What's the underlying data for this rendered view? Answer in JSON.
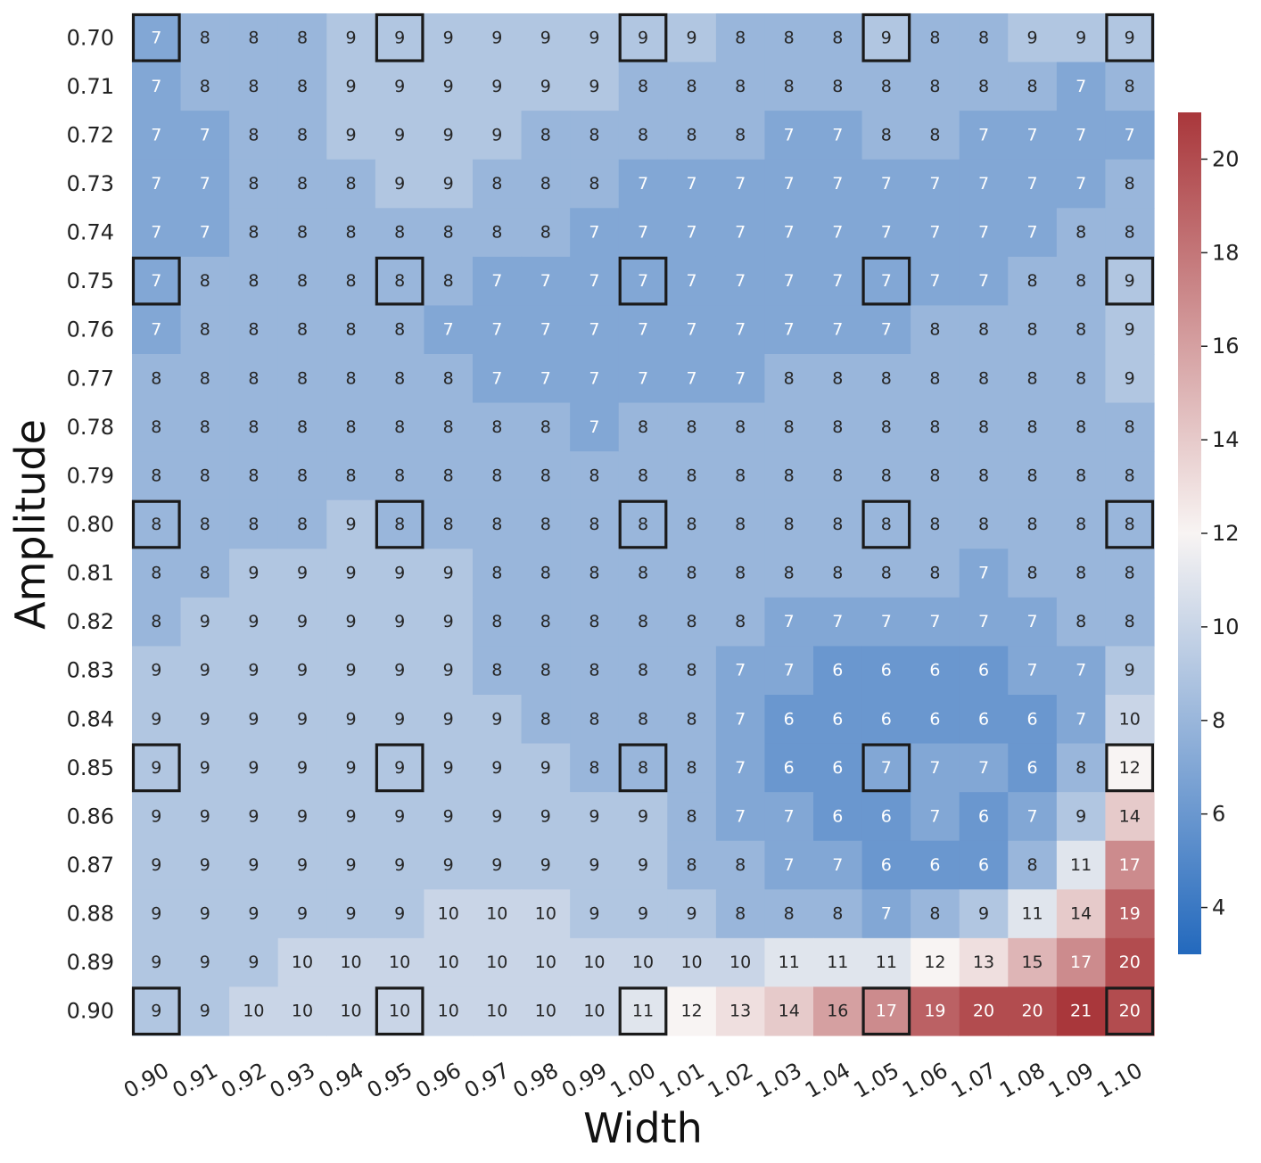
{
  "chart_data": {
    "type": "heatmap",
    "xlabel": "Width",
    "ylabel": "Amplitude",
    "x_categories": [
      "0.90",
      "0.91",
      "0.92",
      "0.93",
      "0.94",
      "0.95",
      "0.96",
      "0.97",
      "0.98",
      "0.99",
      "1.00",
      "1.01",
      "1.02",
      "1.03",
      "1.04",
      "1.05",
      "1.06",
      "1.07",
      "1.08",
      "1.09",
      "1.10"
    ],
    "y_categories": [
      "0.70",
      "0.71",
      "0.72",
      "0.73",
      "0.74",
      "0.75",
      "0.76",
      "0.77",
      "0.78",
      "0.79",
      "0.80",
      "0.81",
      "0.82",
      "0.83",
      "0.84",
      "0.85",
      "0.86",
      "0.87",
      "0.88",
      "0.89",
      "0.90"
    ],
    "values": [
      [
        7,
        8,
        8,
        8,
        9,
        9,
        9,
        9,
        9,
        9,
        9,
        9,
        8,
        8,
        8,
        9,
        8,
        8,
        9,
        9,
        9
      ],
      [
        7,
        8,
        8,
        8,
        9,
        9,
        9,
        9,
        9,
        9,
        8,
        8,
        8,
        8,
        8,
        8,
        8,
        8,
        8,
        7,
        8
      ],
      [
        7,
        7,
        8,
        8,
        9,
        9,
        9,
        9,
        8,
        8,
        8,
        8,
        8,
        7,
        7,
        8,
        8,
        7,
        7,
        7,
        7
      ],
      [
        7,
        7,
        8,
        8,
        8,
        9,
        9,
        8,
        8,
        8,
        7,
        7,
        7,
        7,
        7,
        7,
        7,
        7,
        7,
        7,
        8
      ],
      [
        7,
        7,
        8,
        8,
        8,
        8,
        8,
        8,
        8,
        7,
        7,
        7,
        7,
        7,
        7,
        7,
        7,
        7,
        7,
        8,
        8
      ],
      [
        7,
        8,
        8,
        8,
        8,
        8,
        8,
        7,
        7,
        7,
        7,
        7,
        7,
        7,
        7,
        7,
        7,
        7,
        8,
        8,
        9
      ],
      [
        7,
        8,
        8,
        8,
        8,
        8,
        7,
        7,
        7,
        7,
        7,
        7,
        7,
        7,
        7,
        7,
        8,
        8,
        8,
        8,
        9
      ],
      [
        8,
        8,
        8,
        8,
        8,
        8,
        8,
        7,
        7,
        7,
        7,
        7,
        7,
        8,
        8,
        8,
        8,
        8,
        8,
        8,
        9
      ],
      [
        8,
        8,
        8,
        8,
        8,
        8,
        8,
        8,
        8,
        7,
        8,
        8,
        8,
        8,
        8,
        8,
        8,
        8,
        8,
        8,
        8
      ],
      [
        8,
        8,
        8,
        8,
        8,
        8,
        8,
        8,
        8,
        8,
        8,
        8,
        8,
        8,
        8,
        8,
        8,
        8,
        8,
        8,
        8
      ],
      [
        8,
        8,
        8,
        8,
        9,
        8,
        8,
        8,
        8,
        8,
        8,
        8,
        8,
        8,
        8,
        8,
        8,
        8,
        8,
        8,
        8
      ],
      [
        8,
        8,
        9,
        9,
        9,
        9,
        9,
        8,
        8,
        8,
        8,
        8,
        8,
        8,
        8,
        8,
        8,
        7,
        8,
        8,
        8
      ],
      [
        8,
        9,
        9,
        9,
        9,
        9,
        9,
        8,
        8,
        8,
        8,
        8,
        8,
        7,
        7,
        7,
        7,
        7,
        7,
        8,
        8
      ],
      [
        9,
        9,
        9,
        9,
        9,
        9,
        9,
        8,
        8,
        8,
        8,
        8,
        7,
        7,
        6,
        6,
        6,
        6,
        7,
        7,
        9
      ],
      [
        9,
        9,
        9,
        9,
        9,
        9,
        9,
        9,
        8,
        8,
        8,
        8,
        7,
        6,
        6,
        6,
        6,
        6,
        6,
        7,
        10
      ],
      [
        9,
        9,
        9,
        9,
        9,
        9,
        9,
        9,
        9,
        8,
        8,
        8,
        7,
        6,
        6,
        7,
        7,
        7,
        6,
        8,
        12
      ],
      [
        9,
        9,
        9,
        9,
        9,
        9,
        9,
        9,
        9,
        9,
        9,
        8,
        7,
        7,
        6,
        6,
        7,
        6,
        7,
        9,
        14
      ],
      [
        9,
        9,
        9,
        9,
        9,
        9,
        9,
        9,
        9,
        9,
        9,
        8,
        8,
        7,
        7,
        6,
        6,
        6,
        8,
        11,
        17
      ],
      [
        9,
        9,
        9,
        9,
        9,
        9,
        10,
        10,
        10,
        9,
        9,
        9,
        8,
        8,
        8,
        7,
        8,
        9,
        11,
        14,
        19
      ],
      [
        9,
        9,
        9,
        10,
        10,
        10,
        10,
        10,
        10,
        10,
        10,
        10,
        10,
        11,
        11,
        11,
        12,
        13,
        15,
        17,
        20
      ],
      [
        9,
        9,
        10,
        10,
        10,
        10,
        10,
        10,
        10,
        10,
        11,
        12,
        13,
        14,
        16,
        17,
        19,
        20,
        20,
        21,
        20
      ]
    ],
    "highlighted_cells": {
      "rows": [
        0,
        5,
        10,
        15,
        20
      ],
      "cols": [
        0,
        5,
        10,
        15,
        20
      ]
    },
    "colorbar": {
      "min": 3,
      "max": 21,
      "center": 12,
      "ticks": [
        4,
        6,
        8,
        10,
        12,
        14,
        16,
        18,
        20
      ],
      "colormap": "vlag",
      "low_color": "#2369bd",
      "mid_color": "#f8f4f3",
      "high_color": "#a9373b"
    }
  }
}
